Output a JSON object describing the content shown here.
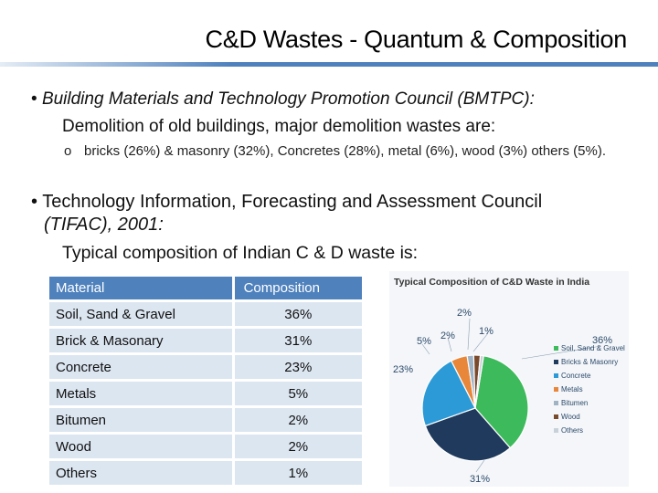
{
  "slide": {
    "title": "C&D Wastes - Quantum & Composition",
    "bullet1": {
      "bullet": "•",
      "source": "Building Materials and Technology Promotion Council (BMTPC):",
      "text": "Demolition of old buildings, major demolition wastes are:",
      "sub_marker": "o",
      "sub_text": "bricks (26%) & masonry (32%), Concretes (28%), metal (6%), wood (3%) others (5%)."
    },
    "bullet2": {
      "bullet": "•",
      "source_plain": "Technology Information, Forecasting and Assessment Council",
      "source_italic": "(TIFAC), 2001:",
      "text": "Typical composition of Indian C & D waste is:"
    }
  },
  "table": {
    "headers": [
      "Material",
      "Composition"
    ],
    "rows": [
      [
        "Soil, Sand & Gravel",
        "36%"
      ],
      [
        "Brick & Masonary",
        "31%"
      ],
      [
        "Concrete",
        "23%"
      ],
      [
        "Metals",
        "5%"
      ],
      [
        "Bitumen",
        "2%"
      ],
      [
        "Wood",
        "2%"
      ],
      [
        "Others",
        "1%"
      ]
    ]
  },
  "chart_data": {
    "type": "pie",
    "title": "Typical Composition of C&D Waste in India",
    "categories": [
      "Soil, Sand & Gravel",
      "Bricks & Masonry",
      "Concrete",
      "Metals",
      "Bitumen",
      "Wood",
      "Others"
    ],
    "values": [
      36,
      31,
      23,
      5,
      2,
      2,
      1
    ],
    "labels": [
      "36%",
      "31%",
      "23%",
      "5%",
      "2%",
      "2%",
      "1%"
    ],
    "colors": [
      "#3dba5c",
      "#1f3a5c",
      "#2c9ad6",
      "#e8873a",
      "#9fb3c4",
      "#7a4a2c",
      "#c8d0d8"
    ],
    "legend": "right"
  }
}
